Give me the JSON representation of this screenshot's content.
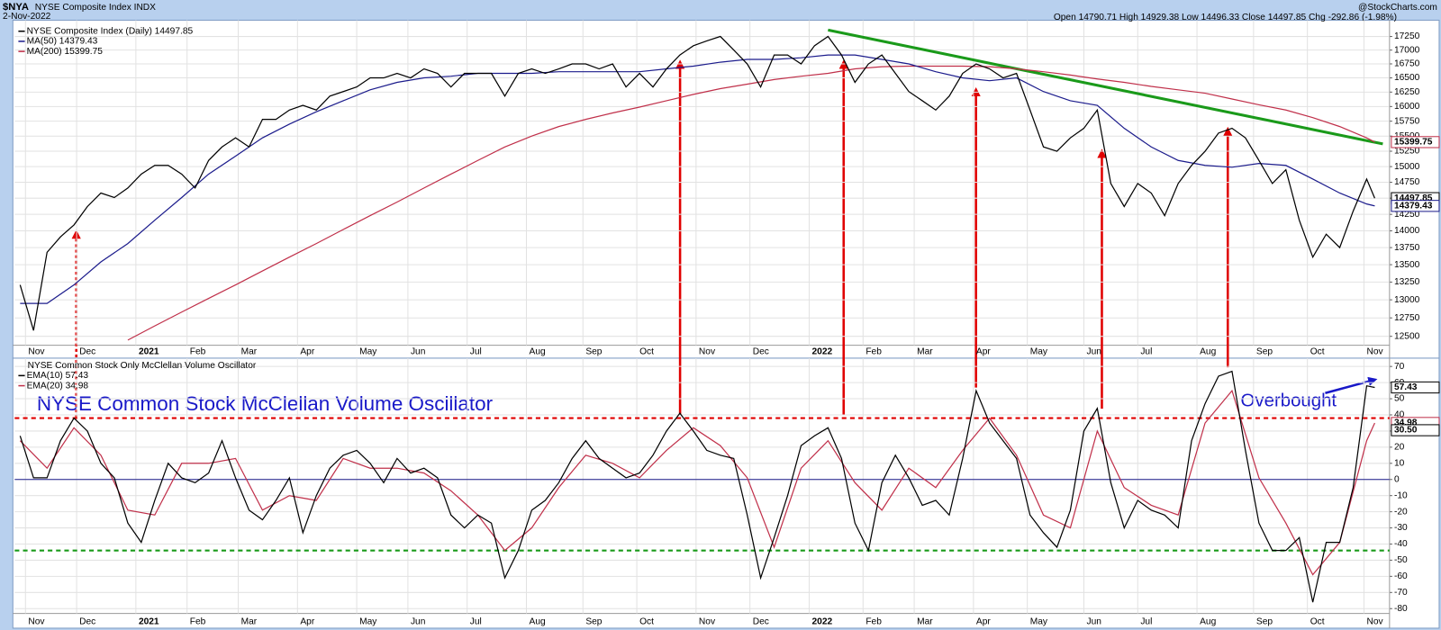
{
  "header": {
    "ticker": "$NYA",
    "name": "NYSE Composite Index INDX",
    "date": "2-Nov-2022",
    "source": "@StockCharts.com",
    "quote": "Open 14790.71 High 14929.38 Low 14496.33 Close 14497.85 Chg -292.86 (-1.98%)"
  },
  "chart_data": [
    {
      "type": "line",
      "log_scale": true,
      "grid": true,
      "xlim": [
        -2,
        508.5
      ],
      "ylim": [
        12380,
        17520
      ],
      "xticks": [
        {
          "value": 2,
          "label": "Nov"
        },
        {
          "value": 21,
          "label": "Dec"
        },
        {
          "value": 43,
          "label": "2021"
        },
        {
          "value": 62,
          "label": "Feb"
        },
        {
          "value": 81,
          "label": "Mar"
        },
        {
          "value": 103,
          "label": "Apr"
        },
        {
          "value": 125,
          "label": "May"
        },
        {
          "value": 144,
          "label": "Jun"
        },
        {
          "value": 166,
          "label": "Jul"
        },
        {
          "value": 188,
          "label": "Aug"
        },
        {
          "value": 209,
          "label": "Sep"
        },
        {
          "value": 229,
          "label": "Oct"
        },
        {
          "value": 251,
          "label": "Nov"
        },
        {
          "value": 271,
          "label": "Dec"
        },
        {
          "value": 293,
          "label": "2022"
        },
        {
          "value": 313,
          "label": "Feb"
        },
        {
          "value": 332,
          "label": "Mar"
        },
        {
          "value": 354,
          "label": "Apr"
        },
        {
          "value": 374,
          "label": "May"
        },
        {
          "value": 395,
          "label": "Jun"
        },
        {
          "value": 415,
          "label": "Jul"
        },
        {
          "value": 437,
          "label": "Aug"
        },
        {
          "value": 458,
          "label": "Sep"
        },
        {
          "value": 478,
          "label": "Oct"
        },
        {
          "value": 499,
          "label": "Nov"
        }
      ],
      "yticks": [
        12500,
        12750,
        13000,
        13250,
        13500,
        13750,
        14000,
        14250,
        14500,
        14750,
        15000,
        15250,
        15500,
        15750,
        16000,
        16250,
        16500,
        16750,
        17000,
        17250
      ],
      "series": [
        {
          "name": "NYSE Composite Index (Daily) 14497.85",
          "color": "#000000",
          "last_label": "14497.85",
          "x": [
            0,
            5,
            10,
            15,
            20,
            25,
            30,
            35,
            40,
            45,
            50,
            55,
            60,
            65,
            70,
            75,
            80,
            85,
            90,
            95,
            100,
            105,
            110,
            115,
            120,
            125,
            130,
            135,
            140,
            145,
            150,
            155,
            160,
            165,
            170,
            175,
            180,
            185,
            190,
            195,
            200,
            205,
            210,
            215,
            220,
            225,
            230,
            235,
            240,
            245,
            250,
            255,
            260,
            265,
            270,
            275,
            280,
            285,
            290,
            295,
            300,
            305,
            310,
            315,
            320,
            325,
            330,
            335,
            340,
            345,
            350,
            355,
            360,
            365,
            370,
            375,
            380,
            385,
            390,
            395,
            400,
            405,
            410,
            415,
            420,
            425,
            430,
            435,
            440,
            445,
            450,
            455,
            460,
            465,
            470,
            475,
            480,
            485,
            490,
            495,
            500,
            503
          ],
          "values": [
            13210,
            12580,
            13680,
            13910,
            14090,
            14370,
            14580,
            14510,
            14660,
            14880,
            15020,
            15020,
            14880,
            14660,
            15100,
            15320,
            15470,
            15320,
            15780,
            15780,
            15940,
            16020,
            15940,
            16180,
            16260,
            16340,
            16500,
            16500,
            16580,
            16500,
            16660,
            16580,
            16340,
            16580,
            16580,
            16580,
            16180,
            16580,
            16660,
            16580,
            16660,
            16750,
            16750,
            16660,
            16750,
            16340,
            16580,
            16340,
            16660,
            16910,
            17080,
            17170,
            17250,
            17000,
            16750,
            16340,
            16910,
            16910,
            16750,
            17080,
            17250,
            16910,
            16420,
            16750,
            16910,
            16580,
            16260,
            16100,
            15940,
            16180,
            16580,
            16750,
            16660,
            16500,
            16580,
            15940,
            15320,
            15250,
            15470,
            15630,
            15940,
            14730,
            14370,
            14730,
            14580,
            14230,
            14730,
            15020,
            15250,
            15550,
            15630,
            15470,
            15100,
            14730,
            14950,
            14160,
            13610,
            13950,
            13750,
            14300,
            14800,
            14500
          ]
        },
        {
          "name": "MA(50) 14379.43",
          "color": "#1c1c8c",
          "last_label": "14379.43",
          "x": [
            0,
            10,
            20,
            30,
            40,
            50,
            60,
            70,
            80,
            90,
            100,
            110,
            120,
            130,
            140,
            150,
            160,
            170,
            180,
            190,
            200,
            210,
            220,
            230,
            240,
            250,
            260,
            270,
            280,
            290,
            300,
            310,
            320,
            330,
            340,
            350,
            360,
            370,
            380,
            390,
            400,
            410,
            420,
            430,
            440,
            450,
            460,
            470,
            480,
            490,
            500,
            503
          ],
          "values": [
            12950,
            12950,
            13210,
            13540,
            13810,
            14160,
            14510,
            14880,
            15170,
            15470,
            15700,
            15910,
            16100,
            16290,
            16420,
            16500,
            16530,
            16580,
            16580,
            16580,
            16610,
            16610,
            16610,
            16610,
            16660,
            16710,
            16780,
            16830,
            16830,
            16860,
            16910,
            16910,
            16830,
            16750,
            16610,
            16500,
            16450,
            16500,
            16260,
            16100,
            16020,
            15630,
            15320,
            15100,
            15020,
            14990,
            15050,
            15020,
            14800,
            14580,
            14410,
            14380
          ]
        },
        {
          "name": "MA(200) 15399.75",
          "color": "#c0304a",
          "last_label": "15399.75",
          "x": [
            40,
            50,
            60,
            70,
            80,
            90,
            100,
            110,
            120,
            130,
            140,
            150,
            160,
            170,
            180,
            190,
            200,
            210,
            220,
            230,
            240,
            250,
            260,
            270,
            280,
            290,
            300,
            310,
            320,
            330,
            340,
            350,
            360,
            370,
            380,
            390,
            400,
            410,
            420,
            430,
            440,
            450,
            460,
            470,
            480,
            490,
            500,
            503
          ],
          "values": [
            12450,
            12640,
            12830,
            13020,
            13210,
            13410,
            13610,
            13810,
            14020,
            14230,
            14440,
            14660,
            14880,
            15100,
            15320,
            15500,
            15660,
            15780,
            15890,
            15990,
            16100,
            16210,
            16310,
            16390,
            16470,
            16530,
            16580,
            16660,
            16700,
            16710,
            16710,
            16710,
            16700,
            16660,
            16610,
            16550,
            16480,
            16420,
            16350,
            16290,
            16230,
            16130,
            16030,
            15940,
            15810,
            15660,
            15470,
            15400
          ]
        }
      ],
      "trendlines": [
        {
          "color": "#1a9a1a",
          "x": [
            300,
            506
          ],
          "values": [
            17370,
            15370
          ]
        }
      ]
    },
    {
      "type": "line",
      "grid": true,
      "title": "NYSE Common Stock Only McClellan Volume Oscillator",
      "annotations": [
        "NYSE Common Stock McClellan Volume Oscillator",
        "Overbought"
      ],
      "xlim": [
        -2,
        508.5
      ],
      "ylim": [
        -83,
        74
      ],
      "xticks": [
        {
          "value": 2,
          "label": "Nov"
        },
        {
          "value": 21,
          "label": "Dec"
        },
        {
          "value": 43,
          "label": "2021"
        },
        {
          "value": 62,
          "label": "Feb"
        },
        {
          "value": 81,
          "label": "Mar"
        },
        {
          "value": 103,
          "label": "Apr"
        },
        {
          "value": 125,
          "label": "May"
        },
        {
          "value": 144,
          "label": "Jun"
        },
        {
          "value": 166,
          "label": "Jul"
        },
        {
          "value": 188,
          "label": "Aug"
        },
        {
          "value": 209,
          "label": "Sep"
        },
        {
          "value": 229,
          "label": "Oct"
        },
        {
          "value": 251,
          "label": "Nov"
        },
        {
          "value": 271,
          "label": "Dec"
        },
        {
          "value": 293,
          "label": "2022"
        },
        {
          "value": 313,
          "label": "Feb"
        },
        {
          "value": 332,
          "label": "Mar"
        },
        {
          "value": 354,
          "label": "Apr"
        },
        {
          "value": 374,
          "label": "May"
        },
        {
          "value": 395,
          "label": "Jun"
        },
        {
          "value": 415,
          "label": "Jul"
        },
        {
          "value": 437,
          "label": "Aug"
        },
        {
          "value": 458,
          "label": "Sep"
        },
        {
          "value": 478,
          "label": "Oct"
        },
        {
          "value": 499,
          "label": "Nov"
        }
      ],
      "yticks": [
        -80,
        -70,
        -60,
        -50,
        -40,
        -30,
        -20,
        -10,
        0,
        10,
        20,
        30,
        40,
        50,
        60,
        70
      ],
      "hlines": [
        {
          "value": 38,
          "color": "#e00000",
          "dashed": true
        },
        {
          "value": -44,
          "color": "#1a9a1a",
          "dashed": true
        },
        {
          "value": 0,
          "color": "#1c1c8c",
          "dashed": false
        }
      ],
      "markers": [
        {
          "value": 30.5,
          "label": "30.50"
        }
      ],
      "series": [
        {
          "name": "EMA(10) 57.43",
          "color": "#000000",
          "last_label": "57.43",
          "x": [
            0,
            5,
            10,
            15,
            20,
            25,
            30,
            35,
            40,
            45,
            50,
            55,
            60,
            65,
            70,
            75,
            80,
            85,
            90,
            95,
            100,
            105,
            110,
            115,
            120,
            125,
            130,
            135,
            140,
            145,
            150,
            155,
            160,
            165,
            170,
            175,
            180,
            185,
            190,
            195,
            200,
            205,
            210,
            215,
            220,
            225,
            230,
            235,
            240,
            245,
            250,
            255,
            260,
            265,
            270,
            275,
            280,
            285,
            290,
            295,
            300,
            305,
            310,
            315,
            320,
            325,
            330,
            335,
            340,
            345,
            350,
            355,
            360,
            365,
            370,
            375,
            380,
            385,
            390,
            395,
            400,
            405,
            410,
            415,
            420,
            425,
            430,
            435,
            440,
            445,
            450,
            455,
            460,
            465,
            470,
            475,
            480,
            485,
            490,
            495,
            500,
            503
          ],
          "values": [
            27,
            1,
            1,
            24,
            38,
            30,
            10,
            1,
            -27,
            -39,
            -13,
            10,
            1,
            -2,
            4,
            24,
            1,
            -19,
            -25,
            -13,
            1,
            -33,
            -10,
            7,
            15,
            18,
            10,
            -2,
            13,
            4,
            7,
            1,
            -22,
            -30,
            -22,
            -27,
            -61,
            -44,
            -19,
            -13,
            -2,
            13,
            24,
            13,
            7,
            1,
            4,
            15,
            30,
            41,
            30,
            18,
            15,
            13,
            -22,
            -61,
            -36,
            -10,
            21,
            27,
            32,
            13,
            -27,
            -44,
            -2,
            15,
            1,
            -16,
            -13,
            -22,
            13,
            55,
            35,
            24,
            13,
            -22,
            -33,
            -42,
            -19,
            30,
            44,
            -2,
            -30,
            -13,
            -19,
            -22,
            -30,
            24,
            47,
            64,
            67,
            18,
            -27,
            -44,
            -44,
            -36,
            -76,
            -39,
            -39,
            -5,
            58,
            57
          ]
        },
        {
          "name": "EMA(20) 34.98",
          "color": "#c0304a",
          "last_label": "34.98",
          "x": [
            0,
            10,
            20,
            30,
            40,
            50,
            60,
            70,
            80,
            90,
            100,
            110,
            120,
            130,
            140,
            150,
            160,
            170,
            180,
            190,
            200,
            210,
            220,
            230,
            240,
            250,
            260,
            270,
            280,
            290,
            300,
            310,
            320,
            330,
            340,
            350,
            360,
            370,
            380,
            390,
            400,
            410,
            420,
            430,
            440,
            450,
            460,
            470,
            480,
            490,
            500,
            503
          ],
          "values": [
            24,
            7,
            32,
            15,
            -19,
            -22,
            10,
            10,
            13,
            -19,
            -10,
            -13,
            13,
            7,
            7,
            4,
            -7,
            -22,
            -44,
            -30,
            -5,
            15,
            10,
            1,
            18,
            32,
            21,
            1,
            -42,
            7,
            24,
            -2,
            -19,
            7,
            -5,
            18,
            38,
            15,
            -22,
            -30,
            30,
            -5,
            -16,
            -22,
            35,
            55,
            1,
            -27,
            -59,
            -39,
            24,
            35
          ]
        }
      ]
    }
  ]
}
